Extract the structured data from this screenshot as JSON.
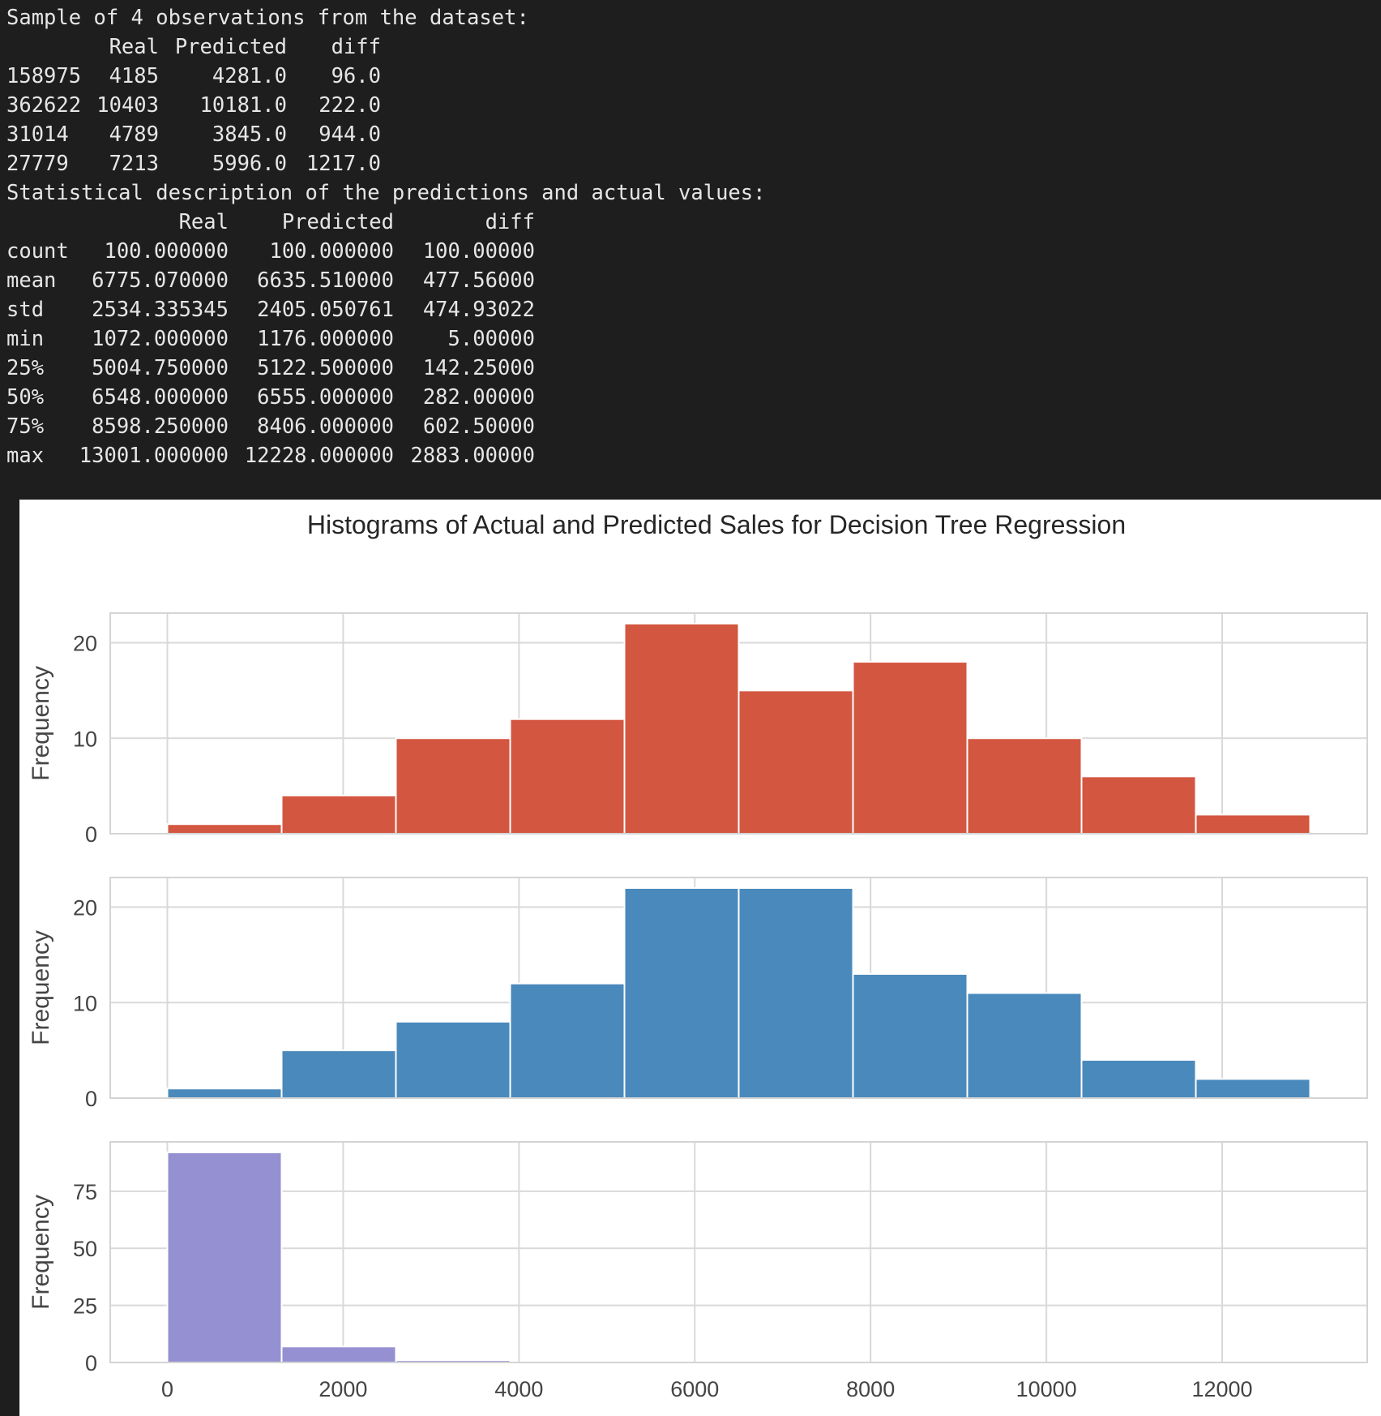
{
  "console": {
    "sample_title": "Sample of 4 observations from the dataset:",
    "sample_headers": [
      "Real",
      "Predicted",
      "diff"
    ],
    "sample_rows": [
      {
        "index": "158975",
        "real": "4185",
        "predicted": "4281.0",
        "diff": "96.0"
      },
      {
        "index": "362622",
        "real": "10403",
        "predicted": "10181.0",
        "diff": "222.0"
      },
      {
        "index": "31014",
        "real": "4789",
        "predicted": "3845.0",
        "diff": "944.0"
      },
      {
        "index": "27779",
        "real": "7213",
        "predicted": "5996.0",
        "diff": "1217.0"
      }
    ],
    "stats_title": "Statistical description of the predictions and actual values:",
    "stats_headers": [
      "Real",
      "Predicted",
      "diff"
    ],
    "stats_rows": [
      {
        "label": "count",
        "real": "100.000000",
        "predicted": "100.000000",
        "diff": "100.00000"
      },
      {
        "label": "mean",
        "real": "6775.070000",
        "predicted": "6635.510000",
        "diff": "477.56000"
      },
      {
        "label": "std",
        "real": "2534.335345",
        "predicted": "2405.050761",
        "diff": "474.93022"
      },
      {
        "label": "min",
        "real": "1072.000000",
        "predicted": "1176.000000",
        "diff": "5.00000"
      },
      {
        "label": "25%",
        "real": "5004.750000",
        "predicted": "5122.500000",
        "diff": "142.25000"
      },
      {
        "label": "50%",
        "real": "6548.000000",
        "predicted": "6555.000000",
        "diff": "282.00000"
      },
      {
        "label": "75%",
        "real": "8598.250000",
        "predicted": "8406.000000",
        "diff": "602.50000"
      },
      {
        "label": "max",
        "real": "13001.000000",
        "predicted": "12228.000000",
        "diff": "2883.00000"
      }
    ]
  },
  "figure": {
    "title": "Histograms of Actual and Predicted Sales for Decision Tree Regression",
    "xticks": [
      0,
      2000,
      4000,
      6000,
      8000,
      10000,
      12000
    ],
    "xlim": [
      -650,
      13650
    ]
  },
  "chart_data": [
    {
      "type": "bar",
      "ylabel": "Frequency",
      "color": "#d35640",
      "bin_edges": [
        0,
        1300,
        2600,
        3900,
        5200,
        6500,
        7800,
        9100,
        10400,
        11700,
        13000
      ],
      "values": [
        1,
        4,
        10,
        12,
        22,
        15,
        18,
        10,
        6,
        2
      ],
      "yticks": [
        0,
        10,
        20
      ],
      "ylim": [
        0,
        23.1
      ],
      "grid": true
    },
    {
      "type": "bar",
      "ylabel": "Frequency",
      "color": "#4a89bc",
      "bin_edges": [
        0,
        1300,
        2600,
        3900,
        5200,
        6500,
        7800,
        9100,
        10400,
        11700,
        13000
      ],
      "values": [
        1,
        5,
        8,
        12,
        22,
        22,
        13,
        11,
        4,
        2
      ],
      "yticks": [
        0,
        10,
        20
      ],
      "ylim": [
        0,
        23.1
      ],
      "grid": true
    },
    {
      "type": "bar",
      "ylabel": "Frequency",
      "color": "#9590d1",
      "bin_edges": [
        0,
        1300,
        2600,
        3900,
        5200,
        6500,
        7800,
        9100,
        10400,
        11700,
        13000
      ],
      "values": [
        92,
        7,
        1,
        0,
        0,
        0,
        0,
        0,
        0,
        0
      ],
      "yticks": [
        0,
        25,
        50,
        75
      ],
      "ylim": [
        0,
        96.6
      ],
      "grid": true
    }
  ]
}
